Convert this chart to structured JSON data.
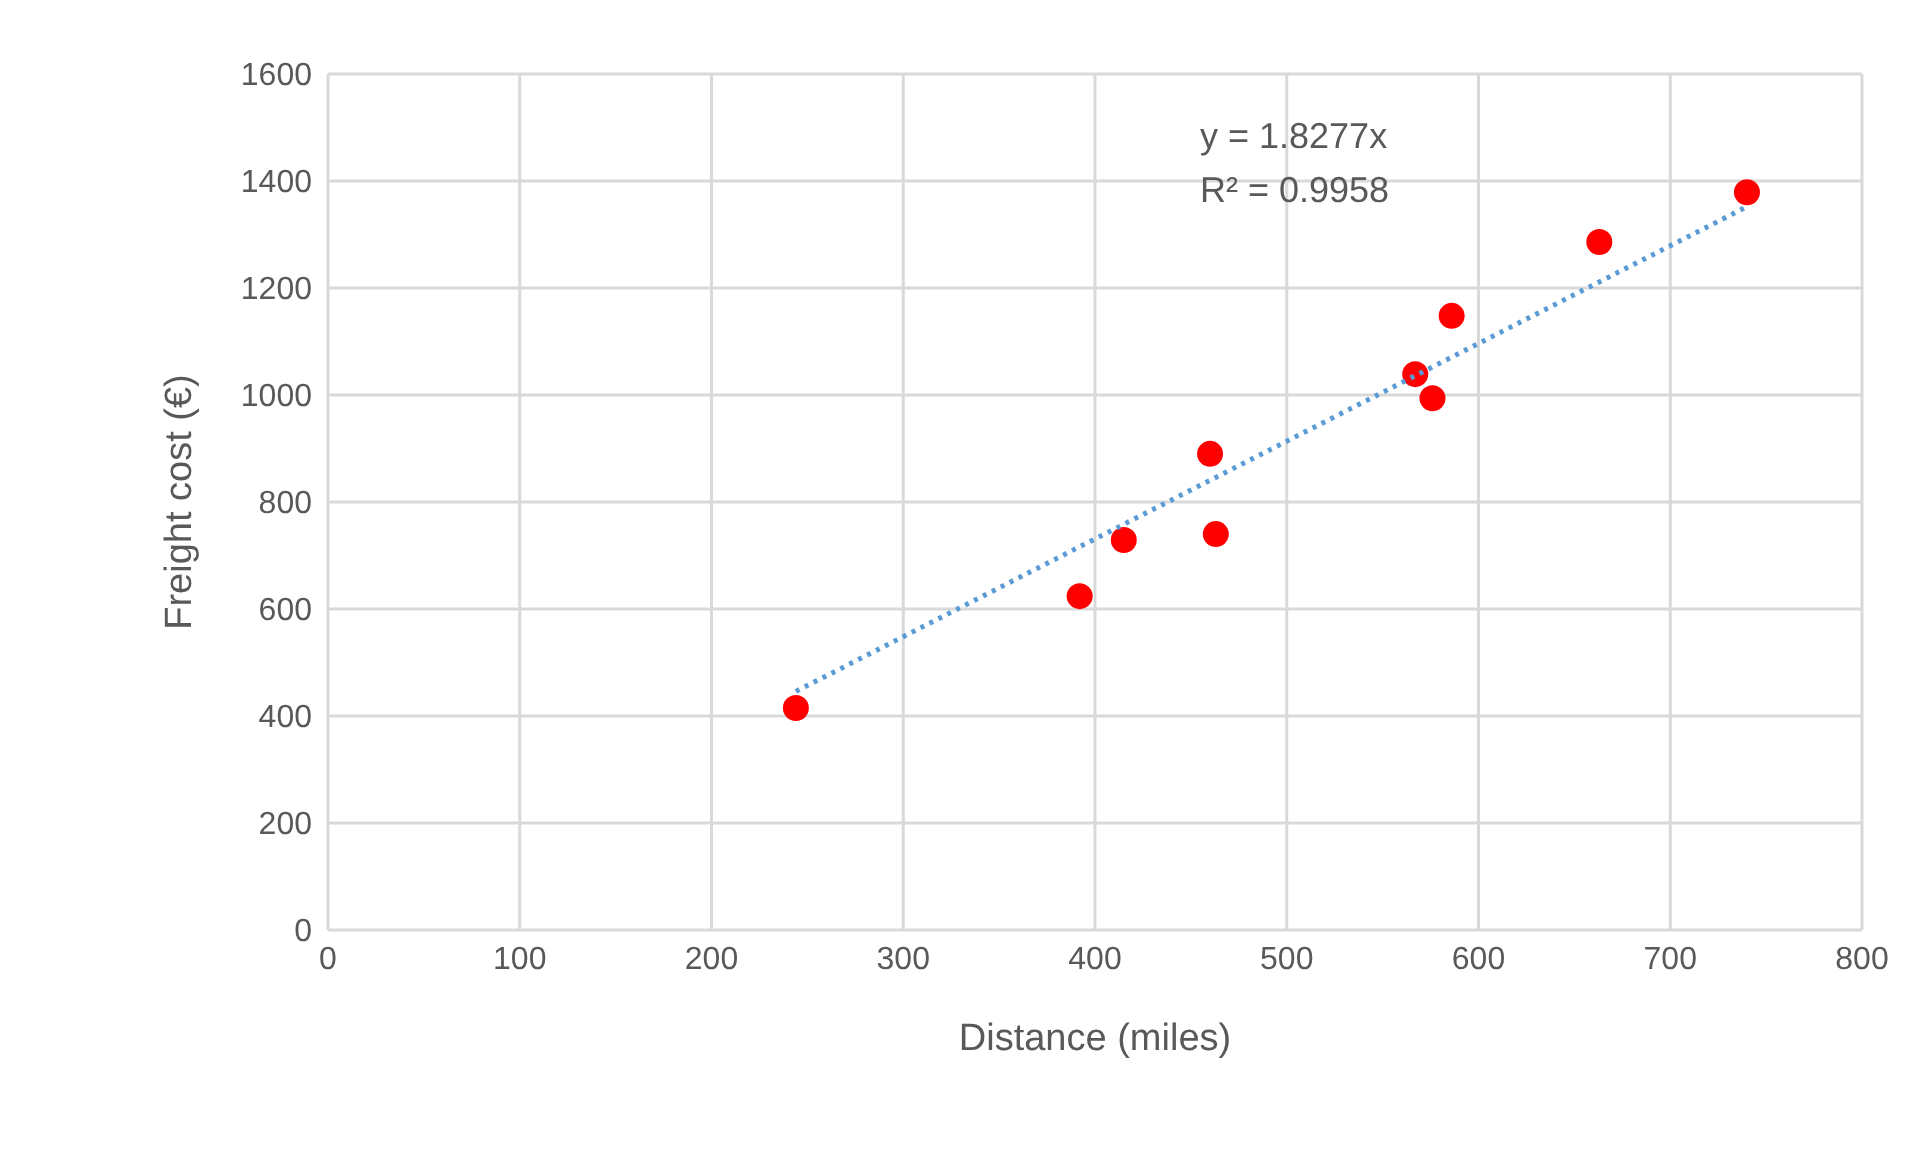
{
  "chart_data": {
    "type": "scatter",
    "xlabel": "Distance (miles)",
    "ylabel": "Freight cost (€)",
    "annotations": [
      "y = 1.8277x",
      "R² = 0.9958"
    ],
    "xlim": [
      0,
      800
    ],
    "xticks": [
      0,
      100,
      200,
      300,
      400,
      500,
      600,
      700,
      800
    ],
    "ylim": [
      0,
      1600
    ],
    "yticks": [
      0,
      200,
      400,
      600,
      800,
      1000,
      1200,
      1400,
      1600
    ],
    "grid": true,
    "legend": false,
    "series": [
      {
        "type": "scatter",
        "color": "#ff0000",
        "marker": "circle",
        "x": [
          244,
          392,
          415,
          460,
          463,
          567,
          576,
          586,
          663,
          740
        ],
        "values": [
          415,
          624,
          729,
          890,
          740,
          1039,
          994,
          1148,
          1286,
          1379
        ]
      },
      {
        "type": "line",
        "color": "#5b9bd5",
        "marker": "none",
        "line_style": "dotted",
        "x": [
          244,
          740
        ],
        "values": [
          446,
          1352
        ]
      }
    ]
  }
}
